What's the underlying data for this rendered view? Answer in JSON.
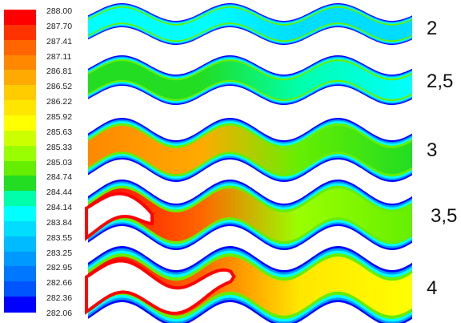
{
  "legend": {
    "ticks": [
      "288.00",
      "287.70",
      "287.41",
      "287.11",
      "286.81",
      "286.52",
      "286.22",
      "285.92",
      "285.63",
      "285.33",
      "285.03",
      "284.74",
      "284.44",
      "284.14",
      "283.84",
      "283.55",
      "283.25",
      "282.95",
      "282.66",
      "282.36",
      "282.06"
    ],
    "colors": [
      "#ff0000",
      "#ff3300",
      "#ff6600",
      "#ff8800",
      "#ffaa00",
      "#ffcc00",
      "#ffe600",
      "#ffff00",
      "#ccff00",
      "#99ff00",
      "#66ee00",
      "#22dd22",
      "#00ffaa",
      "#00ffff",
      "#00ddff",
      "#00bbff",
      "#0099ff",
      "#0077ff",
      "#0055ff",
      "#0000ff"
    ]
  },
  "cases": [
    {
      "label": "2",
      "hot_end_level": 0.32,
      "hot_mid_level": 0.28,
      "has_void": false
    },
    {
      "label": "2,5",
      "hot_end_level": 0.42,
      "hot_mid_level": 0.35,
      "has_void": false
    },
    {
      "label": "3",
      "hot_end_level": 0.85,
      "hot_mid_level": 0.45,
      "has_void": false
    },
    {
      "label": "3,5",
      "hot_end_level": 1.0,
      "hot_mid_level": 0.55,
      "has_void": true
    },
    {
      "label": "4",
      "hot_end_level": 1.0,
      "hot_mid_level": 0.7,
      "has_void": true
    }
  ]
}
